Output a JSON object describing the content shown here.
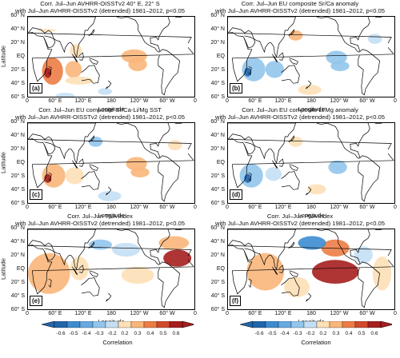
{
  "chart_data": [
    {
      "type": "heatmap",
      "id": "a",
      "title": "Corr. Jul–Jun AVHRR-OISSTv2 40° E, 22° S",
      "subtitle": "with Jul–Jun AVHRR-OISSTv2 (detrended) 1981–2012, p<0.05",
      "panel_label": "(a)",
      "xlabel": "Longitude",
      "ylabel": "Latitude",
      "xticks": [
        "0",
        "60° E",
        "120° E",
        "180",
        "120° W",
        "60° W",
        "0"
      ],
      "yticks": [
        "60° N",
        "40° N",
        "20° N",
        "EQ",
        "20° S",
        "40° S",
        "60° S"
      ],
      "xlim": [
        0,
        360
      ],
      "ylim": [
        -60,
        60
      ],
      "regions": [
        {
          "lon": [
            30,
            75
          ],
          "lat": [
            -40,
            0
          ],
          "value": 0.4
        },
        {
          "lon": [
            35,
            50
          ],
          "lat": [
            -30,
            -15
          ],
          "value": 0.7
        },
        {
          "lon": [
            80,
            115
          ],
          "lat": [
            -30,
            -5
          ],
          "value": 0.3
        },
        {
          "lon": [
            80,
            140
          ],
          "lat": [
            -40,
            -28
          ],
          "value": 0.2
        },
        {
          "lon": [
            200,
            255
          ],
          "lat": [
            -8,
            12
          ],
          "value": 0.35
        },
        {
          "lon": [
            215,
            255
          ],
          "lat": [
            -20,
            0
          ],
          "value": 0.3
        },
        {
          "lon": [
            90,
            115
          ],
          "lat": [
            0,
            20
          ],
          "value": 0.2
        },
        {
          "lon": [
            150,
            180
          ],
          "lat": [
            -55,
            -45
          ],
          "value": -0.2
        },
        {
          "lon": [
            60,
            100
          ],
          "lat": [
            -60,
            -52
          ],
          "value": -0.2
        },
        {
          "lon": [
            20,
            60
          ],
          "lat": [
            38,
            42
          ],
          "value": 0.2
        }
      ]
    },
    {
      "type": "heatmap",
      "id": "b",
      "title": "Corr. Jul–Jun EU composite Sr/Ca anomaly",
      "subtitle": "with Jul–Jun AVHRR-OISSTv2 (detrended) 1981–2012, p<0.05",
      "panel_label": "(b)",
      "xlabel": "Longitude",
      "ylabel": "",
      "xticks": [
        "0",
        "60° E",
        "120° E",
        "180",
        "120° W",
        "60° W",
        "0"
      ],
      "yticks": [
        "60° N",
        "40° N",
        "20° N",
        "EQ",
        "20° S",
        "40° S",
        "60° S"
      ],
      "xlim": [
        0,
        360
      ],
      "ylim": [
        -60,
        60
      ],
      "regions": [
        {
          "lon": [
            30,
            80
          ],
          "lat": [
            -35,
            0
          ],
          "value": -0.35
        },
        {
          "lon": [
            35,
            50
          ],
          "lat": [
            -28,
            -15
          ],
          "value": -0.6
        },
        {
          "lon": [
            80,
            120
          ],
          "lat": [
            -30,
            -5
          ],
          "value": -0.25
        },
        {
          "lon": [
            210,
            255
          ],
          "lat": [
            -10,
            10
          ],
          "value": -0.35
        },
        {
          "lon": [
            220,
            260
          ],
          "lat": [
            -20,
            -5
          ],
          "value": -0.3
        },
        {
          "lon": [
            130,
            160
          ],
          "lat": [
            25,
            40
          ],
          "value": 0.3
        },
        {
          "lon": [
            300,
            330
          ],
          "lat": [
            20,
            35
          ],
          "value": -0.2
        },
        {
          "lon": [
            150,
            200
          ],
          "lat": [
            -55,
            -40
          ],
          "value": 0.2
        }
      ]
    },
    {
      "type": "heatmap",
      "id": "c",
      "title": "Corr. Jul–Jun EU composite Sr/Ca-Li/Mg SST",
      "subtitle": "with Jul–Jun AVHRR-OISSTv2 (detrended) 1981–2012, p<0.05",
      "panel_label": "(c)",
      "xlabel": "Longitude",
      "ylabel": "Latitude",
      "xticks": [
        "0",
        "60° E",
        "120° E",
        "180",
        "120° W",
        "60° W",
        "0"
      ],
      "yticks": [
        "60° N",
        "40° N",
        "20° N",
        "EQ",
        "20° S",
        "40° S",
        "60° S"
      ],
      "xlim": [
        0,
        360
      ],
      "ylim": [
        -60,
        60
      ],
      "regions": [
        {
          "lon": [
            30,
            80
          ],
          "lat": [
            -35,
            0
          ],
          "value": 0.35
        },
        {
          "lon": [
            35,
            50
          ],
          "lat": [
            -28,
            -15
          ],
          "value": 0.6
        },
        {
          "lon": [
            80,
            120
          ],
          "lat": [
            -30,
            -5
          ],
          "value": 0.25
        },
        {
          "lon": [
            210,
            255
          ],
          "lat": [
            -10,
            10
          ],
          "value": 0.35
        },
        {
          "lon": [
            220,
            260
          ],
          "lat": [
            -20,
            -5
          ],
          "value": 0.3
        },
        {
          "lon": [
            130,
            160
          ],
          "lat": [
            25,
            40
          ],
          "value": -0.3
        },
        {
          "lon": [
            300,
            330
          ],
          "lat": [
            20,
            35
          ],
          "value": 0.2
        },
        {
          "lon": [
            150,
            200
          ],
          "lat": [
            -55,
            -40
          ],
          "value": -0.2
        }
      ]
    },
    {
      "type": "heatmap",
      "id": "d",
      "title": "Corr. Jul–Jun EU composite Li/Mg anomaly",
      "subtitle": "with Jul–Jun AVHRR-OISSTv2 (detrended) 1981–2012, p<0.05",
      "panel_label": "(d)",
      "xlabel": "Longitude",
      "ylabel": "",
      "xticks": [
        "0",
        "60° E",
        "120° E",
        "180",
        "120° W",
        "60° W",
        "0"
      ],
      "yticks": [
        "60° N",
        "40° N",
        "20° N",
        "EQ",
        "20° S",
        "40° S",
        "60° S"
      ],
      "xlim": [
        0,
        360
      ],
      "ylim": [
        -60,
        60
      ],
      "regions": [
        {
          "lon": [
            25,
            75
          ],
          "lat": [
            -35,
            0
          ],
          "value": -0.3
        },
        {
          "lon": [
            35,
            50
          ],
          "lat": [
            -28,
            -15
          ],
          "value": -0.6
        },
        {
          "lon": [
            80,
            115
          ],
          "lat": [
            -25,
            -5
          ],
          "value": -0.2
        },
        {
          "lon": [
            215,
            255
          ],
          "lat": [
            -15,
            5
          ],
          "value": -0.3
        },
        {
          "lon": [
            130,
            160
          ],
          "lat": [
            25,
            40
          ],
          "value": 0.25
        },
        {
          "lon": [
            170,
            210
          ],
          "lat": [
            -45,
            -30
          ],
          "value": 0.2
        }
      ]
    },
    {
      "type": "heatmap",
      "id": "e",
      "title": "Corr. Jul–Jun TNA index",
      "subtitle": "with Jul–Jun AVHRR-OISSTv2 (detrended) 1981–2012, p<0.05",
      "panel_label": "(e)",
      "xlabel": "Longitude",
      "ylabel": "Latitude",
      "xticks": [
        "0",
        "60° E",
        "120° E",
        "180",
        "120° W",
        "60° W",
        "0"
      ],
      "yticks": [
        "60° N",
        "40° N",
        "20° N",
        "EQ",
        "20° S",
        "40° S",
        "60° S"
      ],
      "xlim": [
        0,
        360
      ],
      "ylim": [
        -60,
        60
      ],
      "regions": [
        {
          "lon": [
            290,
            350
          ],
          "lat": [
            5,
            30
          ],
          "value": 0.7
        },
        {
          "lon": [
            280,
            345
          ],
          "lat": [
            30,
            50
          ],
          "value": 0.35
        },
        {
          "lon": [
            0,
            90
          ],
          "lat": [
            -35,
            25
          ],
          "value": 0.3
        },
        {
          "lon": [
            90,
            130
          ],
          "lat": [
            -15,
            20
          ],
          "value": 0.25
        },
        {
          "lon": [
            180,
            240
          ],
          "lat": [
            20,
            40
          ],
          "value": -0.2
        },
        {
          "lon": [
            200,
            270
          ],
          "lat": [
            -20,
            5
          ],
          "value": 0.2
        },
        {
          "lon": [
            130,
            180
          ],
          "lat": [
            30,
            45
          ],
          "value": -0.25
        }
      ]
    },
    {
      "type": "heatmap",
      "id": "f",
      "title": "Corr. Jul–Jun PNA index",
      "subtitle": "with Jul–Jun AVHRR-OISSTv2 (detrended) 1981–2012, p<0.05",
      "panel_label": "(f)",
      "xlabel": "Longitude",
      "ylabel": "",
      "xticks": [
        "0",
        "60° E",
        "120° E",
        "180",
        "120° W",
        "60° W",
        "0"
      ],
      "yticks": [
        "60° N",
        "40° N",
        "20° N",
        "EQ",
        "20° S",
        "40° S",
        "60° S"
      ],
      "xlim": [
        0,
        360
      ],
      "ylim": [
        -60,
        60
      ],
      "regions": [
        {
          "lon": [
            180,
            280
          ],
          "lat": [
            -20,
            15
          ],
          "value": 0.6
        },
        {
          "lon": [
            200,
            260
          ],
          "lat": [
            20,
            45
          ],
          "value": 0.45
        },
        {
          "lon": [
            150,
            210
          ],
          "lat": [
            30,
            50
          ],
          "value": -0.45
        },
        {
          "lon": [
            40,
            120
          ],
          "lat": [
            -30,
            25
          ],
          "value": 0.35
        },
        {
          "lon": [
            120,
            175
          ],
          "lat": [
            -40,
            -10
          ],
          "value": 0.2
        },
        {
          "lon": [
            310,
            350
          ],
          "lat": [
            -30,
            20
          ],
          "value": 0.25
        },
        {
          "lon": [
            270,
            310
          ],
          "lat": [
            10,
            35
          ],
          "value": -0.2
        }
      ]
    }
  ],
  "colorbar": {
    "title": "Correlation",
    "ticks": [
      "-0.6",
      "-0.5",
      "-0.4",
      "-0.3",
      "-0.2",
      "0.2",
      "0.3",
      "0.4",
      "0.5",
      "0.6"
    ],
    "colors": [
      "#2166ac",
      "#3d8cd1",
      "#67a9e1",
      "#92c5ec",
      "#c3dff5",
      "#fde0b6",
      "#f9b67a",
      "#ec7d45",
      "#d24a2c",
      "#a61e1e"
    ]
  }
}
